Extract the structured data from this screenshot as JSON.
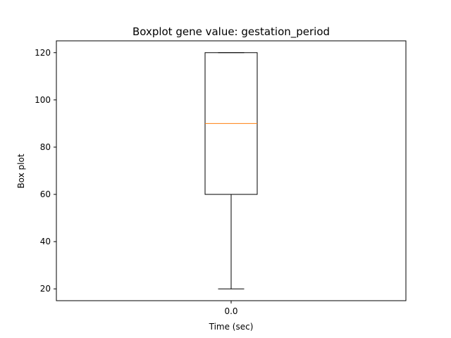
{
  "chart_data": {
    "type": "box",
    "title": "Boxplot gene value: gestation_period",
    "xlabel": "Time (sec)",
    "ylabel": "Box plot",
    "categories": [
      "0.0"
    ],
    "boxes": [
      {
        "category": "0.0",
        "whisker_low": 20,
        "q1": 60,
        "median": 90,
        "q3": 120,
        "whisker_high": 120
      }
    ],
    "ylim": [
      15,
      125
    ],
    "yticks": [
      20,
      40,
      60,
      80,
      100,
      120
    ],
    "grid": false,
    "colors": {
      "box": "#000000",
      "median": "#ff7f0e",
      "whisker": "#000000"
    }
  }
}
